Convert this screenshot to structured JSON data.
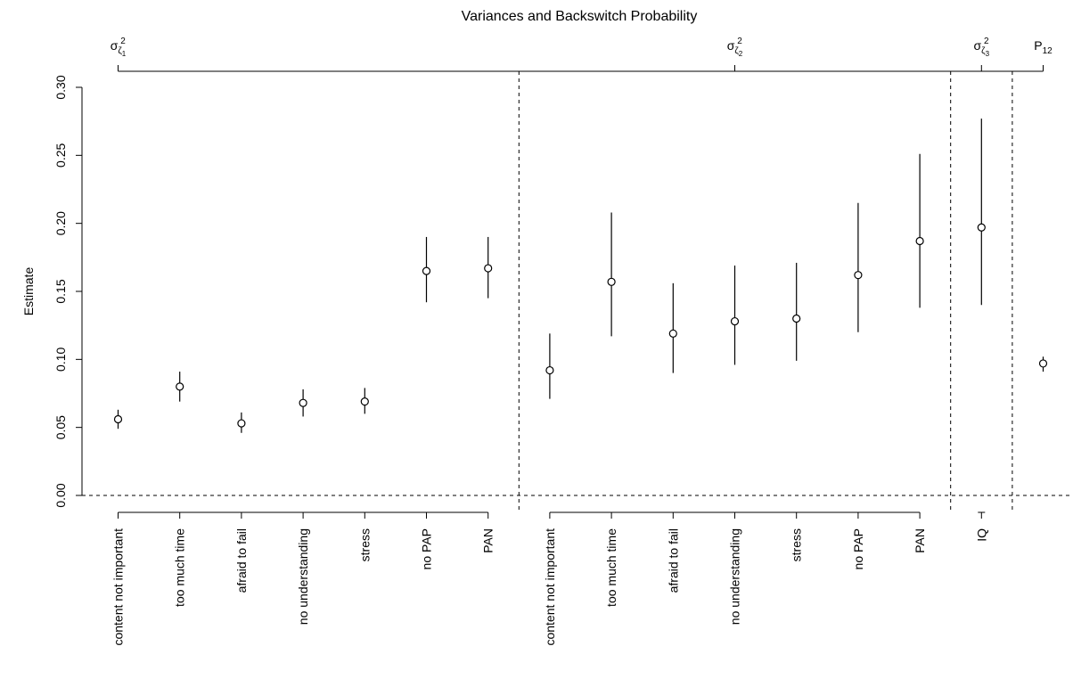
{
  "chart_data": {
    "type": "scatter",
    "title": "Variances and Backswitch Probability",
    "ylabel": "Estimate",
    "ylim": [
      0,
      0.3
    ],
    "yticks": [
      0.0,
      0.05,
      0.1,
      0.15,
      0.2,
      0.25,
      0.3
    ],
    "ytick_labels": [
      "0.00",
      "0.05",
      "0.10",
      "0.15",
      "0.20",
      "0.25",
      "0.30"
    ],
    "reference_line_y": 0,
    "groups": [
      {
        "label_base": "σ",
        "label_sub": "ζ",
        "label_subsub": "1",
        "label_sup": "2",
        "points": [
          {
            "category": "content not important",
            "estimate": 0.056,
            "lower": 0.049,
            "upper": 0.063
          },
          {
            "category": "too much time",
            "estimate": 0.08,
            "lower": 0.069,
            "upper": 0.091
          },
          {
            "category": "afraid to fail",
            "estimate": 0.053,
            "lower": 0.046,
            "upper": 0.061
          },
          {
            "category": "no understanding",
            "estimate": 0.068,
            "lower": 0.058,
            "upper": 0.078
          },
          {
            "category": "stress",
            "estimate": 0.069,
            "lower": 0.06,
            "upper": 0.079
          },
          {
            "category": "no PAP",
            "estimate": 0.165,
            "lower": 0.142,
            "upper": 0.19
          },
          {
            "category": "PAN",
            "estimate": 0.167,
            "lower": 0.145,
            "upper": 0.19
          }
        ]
      },
      {
        "label_base": "σ",
        "label_sub": "ζ",
        "label_subsub": "2",
        "label_sup": "2",
        "points": [
          {
            "category": "content not important",
            "estimate": 0.092,
            "lower": 0.071,
            "upper": 0.119
          },
          {
            "category": "too much time",
            "estimate": 0.157,
            "lower": 0.117,
            "upper": 0.208
          },
          {
            "category": "afraid to fail",
            "estimate": 0.119,
            "lower": 0.09,
            "upper": 0.156
          },
          {
            "category": "no understanding",
            "estimate": 0.128,
            "lower": 0.096,
            "upper": 0.169
          },
          {
            "category": "stress",
            "estimate": 0.13,
            "lower": 0.099,
            "upper": 0.171
          },
          {
            "category": "no PAP",
            "estimate": 0.162,
            "lower": 0.12,
            "upper": 0.215
          },
          {
            "category": "PAN",
            "estimate": 0.187,
            "lower": 0.138,
            "upper": 0.251
          }
        ]
      },
      {
        "label_base": "σ",
        "label_sub": "ζ",
        "label_subsub": "3",
        "label_sup": "2",
        "points": [
          {
            "category": "IQ",
            "estimate": 0.197,
            "lower": 0.14,
            "upper": 0.277
          }
        ]
      },
      {
        "label_base": "P",
        "label_sub": "12",
        "label_subsub": "",
        "label_sup": "",
        "points": [
          {
            "category": "",
            "estimate": 0.097,
            "lower": 0.091,
            "upper": 0.102
          }
        ]
      }
    ],
    "grid": false,
    "legend": "none"
  }
}
